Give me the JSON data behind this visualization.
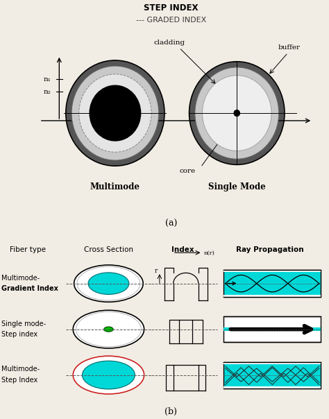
{
  "bg_color": "#f2ede4",
  "title_a_text1": "STEP INDEX",
  "title_a_text2": "--- GRADED INDEX",
  "label_multimode": "Multimode",
  "label_singlemode": "Single Mode",
  "label_cladding": "cladding",
  "label_buffer": "buffer",
  "label_core": "core",
  "label_n1": "n₁",
  "label_n2": "n₂",
  "label_a": "(a)",
  "label_b": "(b)",
  "col_headers": [
    "Fiber type",
    "Cross Section",
    "Index",
    "Ray Propagation"
  ],
  "row_labels": [
    [
      "Multimode-",
      "Gradient Index"
    ],
    [
      "Single mode-",
      "Step index"
    ],
    [
      "Multimode-",
      "Step Index"
    ]
  ],
  "cyan_color": "#00d8d8",
  "dark_gray": "#3a3a3a",
  "medium_gray": "#888888",
  "light_gray": "#cccccc",
  "white": "#ffffff",
  "black": "#000000",
  "green_dot": "#00bb00",
  "red_ring": "#cc2222",
  "jacket_color": "#555555",
  "clad_color": "#c8c8c8",
  "inner_clad_color": "#e5e5e5"
}
